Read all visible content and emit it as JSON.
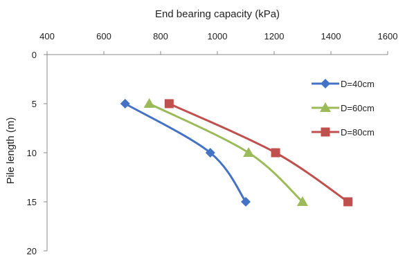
{
  "chart_data": {
    "type": "line",
    "title": "",
    "xlabel": "End bearing capacity (kPa)",
    "ylabel": "Pile length (m)",
    "xlim": [
      400,
      1600
    ],
    "ylim": [
      0,
      20
    ],
    "x_axis_position": "top",
    "y_axis_inverted": true,
    "x_ticks": [
      "400",
      "600",
      "800",
      "1000",
      "1200",
      "1400",
      "1600"
    ],
    "y_ticks": [
      "0",
      "5",
      "10",
      "15",
      "20"
    ],
    "grid": false,
    "legend_position": "right",
    "series": [
      {
        "name": "D=40cm",
        "color": "#4472C4",
        "marker": "diamond",
        "points": [
          {
            "x": 675,
            "y": 5
          },
          {
            "x": 975,
            "y": 10
          },
          {
            "x": 1100,
            "y": 15
          }
        ]
      },
      {
        "name": "D=60cm",
        "color": "#9BBB59",
        "marker": "triangle",
        "points": [
          {
            "x": 760,
            "y": 5
          },
          {
            "x": 1110,
            "y": 10
          },
          {
            "x": 1300,
            "y": 15
          }
        ]
      },
      {
        "name": "D=80cm",
        "color": "#C0504D",
        "marker": "square",
        "points": [
          {
            "x": 830,
            "y": 5
          },
          {
            "x": 1205,
            "y": 10
          },
          {
            "x": 1460,
            "y": 15
          }
        ]
      }
    ]
  }
}
